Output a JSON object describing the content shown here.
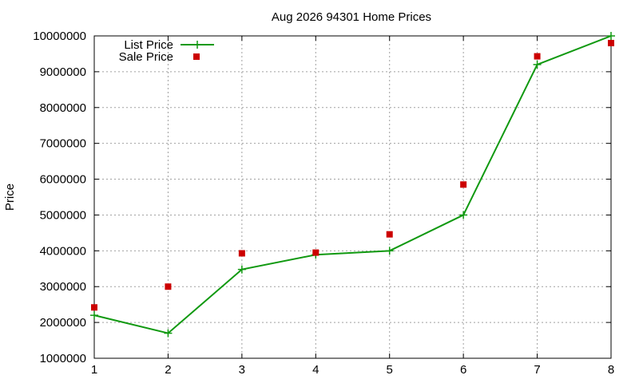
{
  "chart_data": {
    "type": "line",
    "title": "Aug 2026 94301 Home Prices",
    "xlabel": "",
    "ylabel": "Price",
    "xlim": [
      1,
      8
    ],
    "ylim": [
      1000000,
      10000000
    ],
    "x_ticks": [
      "1",
      "2",
      "3",
      "4",
      "5",
      "6",
      "7",
      "8"
    ],
    "y_ticks": [
      "1000000",
      "2000000",
      "3000000",
      "4000000",
      "5000000",
      "6000000",
      "7000000",
      "8000000",
      "9000000",
      "10000000"
    ],
    "grid": true,
    "legend_position": "top-left",
    "series": [
      {
        "name": "List Price",
        "style": "line with plus markers",
        "color": "#109910",
        "x": [
          1,
          2,
          3,
          4,
          5,
          6,
          7,
          8
        ],
        "values": [
          2200000,
          1700000,
          3480000,
          3890000,
          4000000,
          5000000,
          9200000,
          10000000
        ]
      },
      {
        "name": "Sale Price",
        "style": "square markers",
        "color": "#cc0000",
        "x": [
          1,
          2,
          3,
          4,
          5,
          6,
          7,
          8
        ],
        "values": [
          2420000,
          3000000,
          3930000,
          3950000,
          4460000,
          5850000,
          9430000,
          9800000
        ]
      }
    ]
  }
}
